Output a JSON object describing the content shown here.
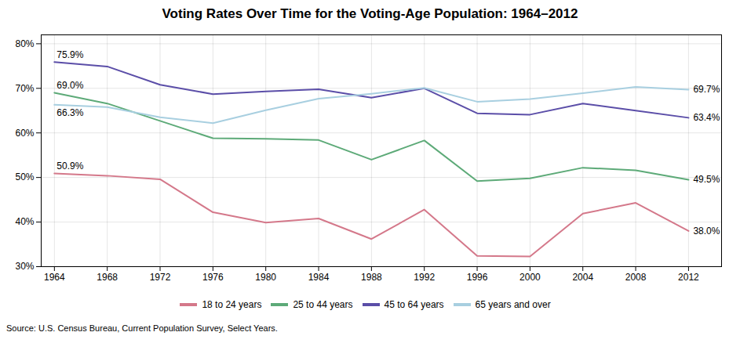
{
  "chart_data": {
    "type": "line",
    "title": "Voting Rates Over Time for the Voting-Age Population: 1964–2012",
    "caption": "Source: U.S. Census Bureau, Current Population Survey, Select Years.",
    "x": [
      1964,
      1968,
      1972,
      1976,
      1980,
      1984,
      1988,
      1992,
      1996,
      2000,
      2004,
      2008,
      2012
    ],
    "series": [
      {
        "name": "18 to 24 years",
        "color": "#d4788a",
        "values": [
          50.9,
          50.4,
          49.6,
          42.2,
          39.9,
          40.8,
          36.2,
          42.8,
          32.4,
          32.3,
          41.9,
          44.3,
          38.0
        ]
      },
      {
        "name": "25 to 44 years",
        "color": "#5daa78",
        "values": [
          69.0,
          66.6,
          62.7,
          58.8,
          58.7,
          58.4,
          54.0,
          58.3,
          49.2,
          49.8,
          52.2,
          51.6,
          49.5
        ]
      },
      {
        "name": "45 to 64 years",
        "color": "#5b4ea8",
        "values": [
          75.9,
          74.9,
          70.8,
          68.7,
          69.3,
          69.8,
          67.9,
          70.0,
          64.4,
          64.1,
          66.6,
          65.0,
          63.4
        ]
      },
      {
        "name": "65 years and over",
        "color": "#a8cfe0",
        "values": [
          66.3,
          65.8,
          63.5,
          62.2,
          65.1,
          67.7,
          68.8,
          70.1,
          67.0,
          67.6,
          68.9,
          70.3,
          69.7
        ]
      }
    ],
    "annotations": [
      {
        "x": 1964,
        "y": 75.9,
        "text": "75.9%"
      },
      {
        "x": 1964,
        "y": 69.0,
        "text": "69.0%"
      },
      {
        "x": 1964,
        "y": 66.3,
        "text": "66.3%"
      },
      {
        "x": 1964,
        "y": 50.9,
        "text": "50.9%"
      },
      {
        "x": 2012,
        "y": 69.7,
        "text": "69.7%"
      },
      {
        "x": 2012,
        "y": 63.4,
        "text": "63.4%"
      },
      {
        "x": 2012,
        "y": 49.5,
        "text": "49.5%"
      },
      {
        "x": 2012,
        "y": 38.0,
        "text": "38.0%"
      }
    ],
    "xlim": [
      1963,
      2014.5
    ],
    "xticks": [
      1964,
      1968,
      1972,
      1976,
      1980,
      1984,
      1988,
      1992,
      1996,
      2000,
      2004,
      2008,
      2012
    ],
    "ylim": [
      30,
      82
    ],
    "yticks": [
      {
        "value": 30,
        "label": "30%"
      },
      {
        "value": 40,
        "label": "40%"
      },
      {
        "value": 50,
        "label": "50%"
      },
      {
        "value": 60,
        "label": "60%"
      },
      {
        "value": 70,
        "label": "70%"
      },
      {
        "value": 80,
        "label": "80%"
      }
    ],
    "grid": true,
    "legend": "bottom"
  }
}
